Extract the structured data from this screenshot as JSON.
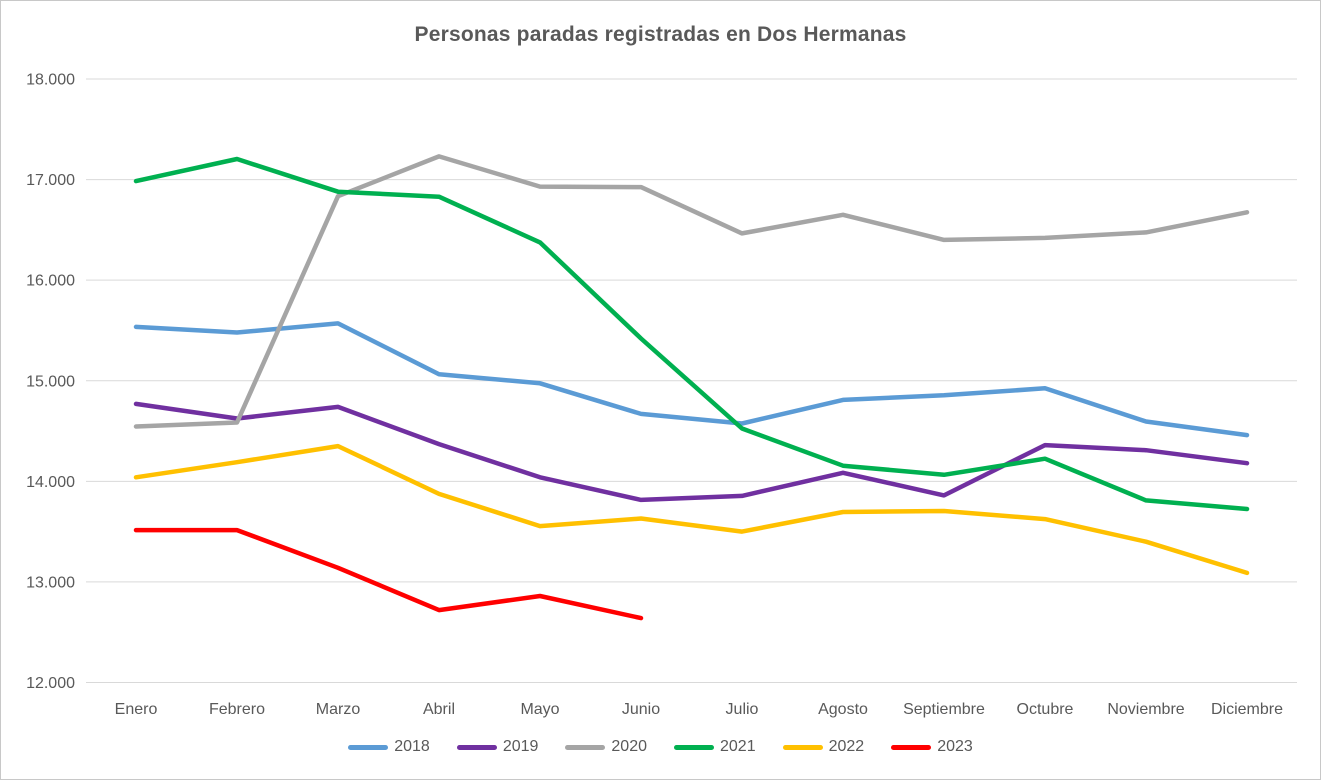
{
  "chart_data": {
    "type": "line",
    "title": "Personas paradas registradas en Dos Hermanas",
    "categories": [
      "Enero",
      "Febrero",
      "Marzo",
      "Abril",
      "Mayo",
      "Junio",
      "Julio",
      "Agosto",
      "Septiembre",
      "Octubre",
      "Noviembre",
      "Diciembre"
    ],
    "series": [
      {
        "name": "2018",
        "color": "#5B9BD5",
        "values": [
          15535,
          15480,
          15570,
          15065,
          14975,
          14670,
          14575,
          14810,
          14855,
          14925,
          14595,
          14460
        ]
      },
      {
        "name": "2019",
        "color": "#7030A0",
        "values": [
          14770,
          14625,
          14740,
          14370,
          14040,
          13815,
          13855,
          14085,
          13860,
          14360,
          14310,
          14180
        ]
      },
      {
        "name": "2020",
        "color": "#A5A5A5",
        "values": [
          14545,
          14585,
          16835,
          17230,
          16930,
          16925,
          16465,
          16650,
          16400,
          16420,
          16475,
          16675
        ]
      },
      {
        "name": "2021",
        "color": "#00B050",
        "values": [
          16985,
          17205,
          16880,
          16830,
          16375,
          15420,
          14525,
          14155,
          14065,
          14225,
          13810,
          13725
        ]
      },
      {
        "name": "2022",
        "color": "#FFC000",
        "values": [
          14040,
          14190,
          14350,
          13875,
          13555,
          13630,
          13500,
          13695,
          13705,
          13625,
          13400,
          13090
        ]
      },
      {
        "name": "2023",
        "color": "#FF0000",
        "values": [
          13515,
          13515,
          13140,
          12720,
          12860,
          12640
        ]
      }
    ],
    "y_axis": {
      "min": 12000,
      "max": 18000,
      "step": 1000,
      "tick_labels": [
        "18.000",
        "17.000",
        "16.000",
        "15.000",
        "14.000",
        "13.000",
        "12.000"
      ]
    },
    "grid": "horizontal",
    "legend_position": "bottom",
    "text_color": "#595959",
    "gridline_color": "#D9D9D9",
    "line_width": 4.5
  }
}
